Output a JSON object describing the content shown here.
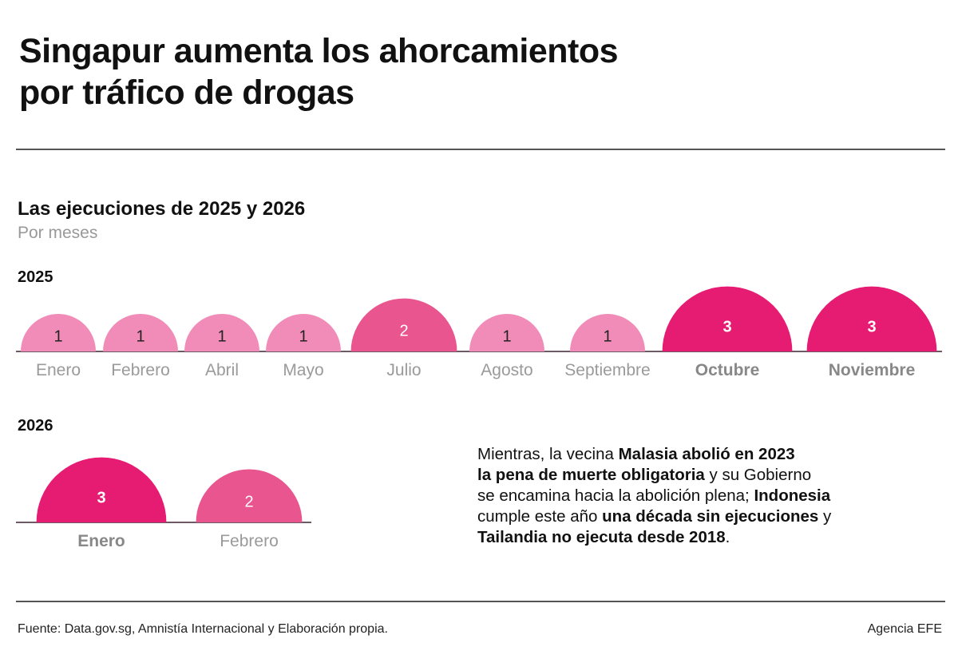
{
  "title_line1": "Singapur aumenta los ahorcamientos",
  "title_line2": "por tráfico de drogas",
  "subtitle": "Las ejecuciones de 2025 y 2026",
  "subtitle2": "Por meses",
  "colors": {
    "1": "#f18cb8",
    "2": "#e9558f",
    "3": "#e61b72",
    "label": "#999999",
    "baseline": "#6e5a66"
  },
  "chart_data": [
    {
      "type": "semicircle-bubble",
      "year": "2025",
      "categories": [
        "Enero",
        "Febrero",
        "Abril",
        "Mayo",
        "Julio",
        "Agosto",
        "Septiembre",
        "Octubre",
        "Noviembre"
      ],
      "values": [
        1,
        1,
        1,
        1,
        2,
        1,
        1,
        3,
        3
      ]
    },
    {
      "type": "semicircle-bubble",
      "year": "2026",
      "categories": [
        "Enero",
        "Febrero"
      ],
      "values": [
        3,
        2
      ]
    }
  ],
  "note": [
    {
      "t": "Mientras, la vecina ",
      "b": false
    },
    {
      "t": "Malasia abolió en 2023",
      "b": true,
      "br": true
    },
    {
      "t": "la pena de muerte obligatoria",
      "b": true
    },
    {
      "t": " y su Gobierno",
      "b": false,
      "br": true
    },
    {
      "t": "se encamina hacia la abolición plena; ",
      "b": false
    },
    {
      "t": "Indonesia",
      "b": true,
      "br": true
    },
    {
      "t": "cumple este año ",
      "b": false
    },
    {
      "t": "una década sin ejecuciones",
      "b": true
    },
    {
      "t": " y",
      "b": false,
      "br": true
    },
    {
      "t": "Tailandia no ejecuta desde 2018",
      "b": true
    },
    {
      "t": ".",
      "b": false
    }
  ],
  "footer": {
    "source": "Fuente:  Data.gov.sg, Amnistía Internacional y Elaboración propia.",
    "agency": "Agencia EFE"
  }
}
